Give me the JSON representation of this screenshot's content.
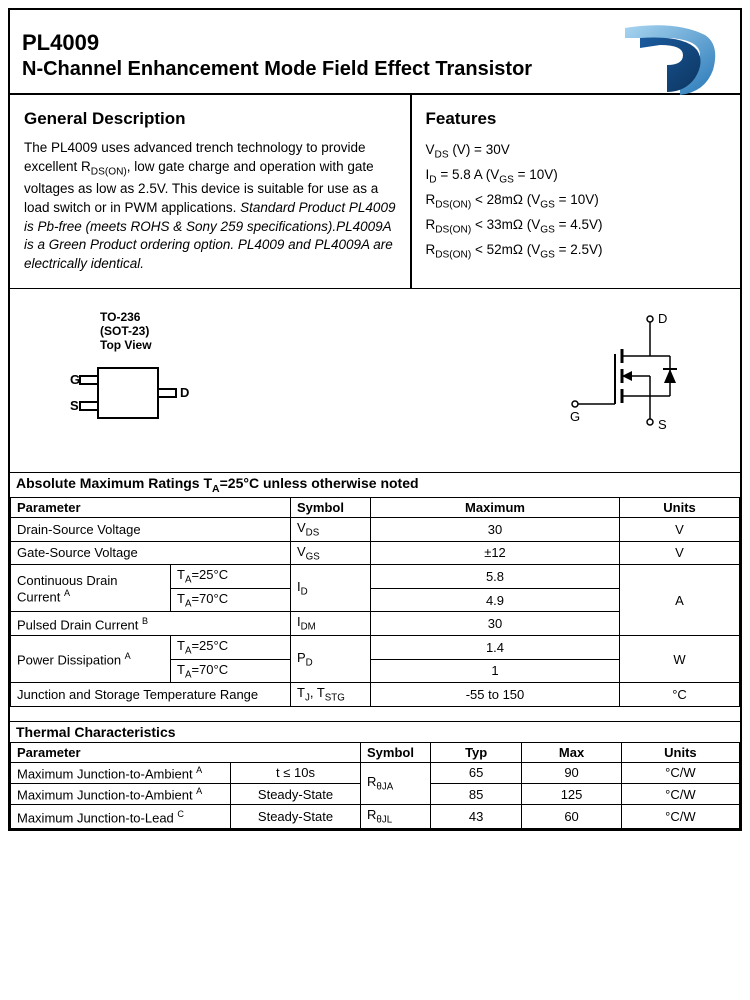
{
  "header": {
    "part_number": "PL4009",
    "title": "N-Channel Enhancement Mode Field Effect Transistor"
  },
  "general_description": {
    "heading": "General Description",
    "text_plain": "The PL4009 uses advanced trench technology to provide excellent R",
    "text_sub1": "DS(ON)",
    "text_cont1": ", low gate charge and operation with gate voltages as low as 2.5V. This device is suitable for use as a load switch or in PWM applications. ",
    "text_italic": "Standard Product PL4009 is Pb-free (meets ROHS & Sony 259 specifications).PL4009A is a Green Product ordering option. PL4009 and PL4009A are electrically identical."
  },
  "features": {
    "heading": "Features",
    "lines": [
      {
        "pre": "V",
        "sub": "DS",
        "post": " (V) = 30V"
      },
      {
        "pre": "I",
        "sub": "D",
        "post": " = 5.8 A (V",
        "sub2": "GS",
        "post2": " = 10V)"
      },
      {
        "pre": "R",
        "sub": "DS(ON)",
        "post": " < 28mΩ (V",
        "sub2": "GS",
        "post2": " = 10V)"
      },
      {
        "pre": "R",
        "sub": "DS(ON)",
        "post": " < 33mΩ (V",
        "sub2": "GS",
        "post2": " = 4.5V)"
      },
      {
        "pre": "R",
        "sub": "DS(ON)",
        "post": " < 52mΩ (V",
        "sub2": "GS",
        "post2": " = 2.5V)"
      }
    ]
  },
  "package": {
    "label1": "TO-236",
    "label2": "(SOT-23)",
    "label3": "Top View",
    "pin_g": "G",
    "pin_s": "S",
    "pin_d": "D"
  },
  "schematic": {
    "d": "D",
    "g": "G",
    "s": "S"
  },
  "abs_max": {
    "title": "Absolute Maximum Ratings  T",
    "title_sub": "A",
    "title_post": "=25°C unless otherwise noted",
    "columns": [
      "Parameter",
      "Symbol",
      "Maximum",
      "Units"
    ],
    "rows": [
      {
        "param": "Drain-Source Voltage",
        "symbol_pre": "V",
        "symbol_sub": "DS",
        "max": "30",
        "units": "V"
      },
      {
        "param": "Gate-Source Voltage",
        "symbol_pre": "V",
        "symbol_sub": "GS",
        "max": "±12",
        "units": "V"
      }
    ],
    "cont_drain_label": "Continuous Drain Current ",
    "cont_drain_sup": "A",
    "ta25": "T",
    "ta25_sub": "A",
    "ta25_post": "=25°C",
    "ta70": "T",
    "ta70_sub": "A",
    "ta70_post": "=70°C",
    "cont_drain_sym_pre": "I",
    "cont_drain_sym_sub": "D",
    "cont_drain_25": "5.8",
    "cont_drain_70": "4.9",
    "cont_drain_units": "A",
    "pulsed_label": "Pulsed Drain Current ",
    "pulsed_sup": "B",
    "pulsed_sym_pre": "I",
    "pulsed_sym_sub": "DM",
    "pulsed_max": "30",
    "power_label": "Power Dissipation ",
    "power_sup": "A",
    "power_sym_pre": "P",
    "power_sym_sub": "D",
    "power_25": "1.4",
    "power_70": "1",
    "power_units": "W",
    "junction_label": "Junction and Storage Temperature Range",
    "junction_sym": "T",
    "junction_sub1": "J",
    "junction_sep": ", T",
    "junction_sub2": "STG",
    "junction_max": "-55 to 150",
    "junction_units": "°C"
  },
  "thermal": {
    "title": "Thermal Characteristics",
    "columns": [
      "Parameter",
      "Symbol",
      "Typ",
      "Max",
      "Units"
    ],
    "rows": [
      {
        "param": "Maximum Junction-to-Ambient ",
        "sup": "A",
        "cond": "t  ≤  10s",
        "sym_pre": "R",
        "sym_sub": "θJA",
        "typ": "65",
        "max": "90",
        "units": "°C/W"
      },
      {
        "param": "Maximum Junction-to-Ambient ",
        "sup": "A",
        "cond": "Steady-State",
        "sym_pre": "R",
        "sym_sub": "θJA",
        "typ": "85",
        "max": "125",
        "units": "°C/W"
      },
      {
        "param": "Maximum Junction-to-Lead ",
        "sup": "C",
        "cond": "Steady-State",
        "sym_pre": "R",
        "sym_sub": "θJL",
        "typ": "43",
        "max": "60",
        "units": "°C/W"
      }
    ]
  },
  "styling": {
    "brand_color_light": "#6db4e0",
    "brand_color_dark": "#1a5b9e",
    "border_color": "#000000",
    "background": "#ffffff",
    "text_color": "#000000",
    "header_fontsize": 22,
    "section_fontsize": 17,
    "body_fontsize": 13.5,
    "table_fontsize": 13
  }
}
